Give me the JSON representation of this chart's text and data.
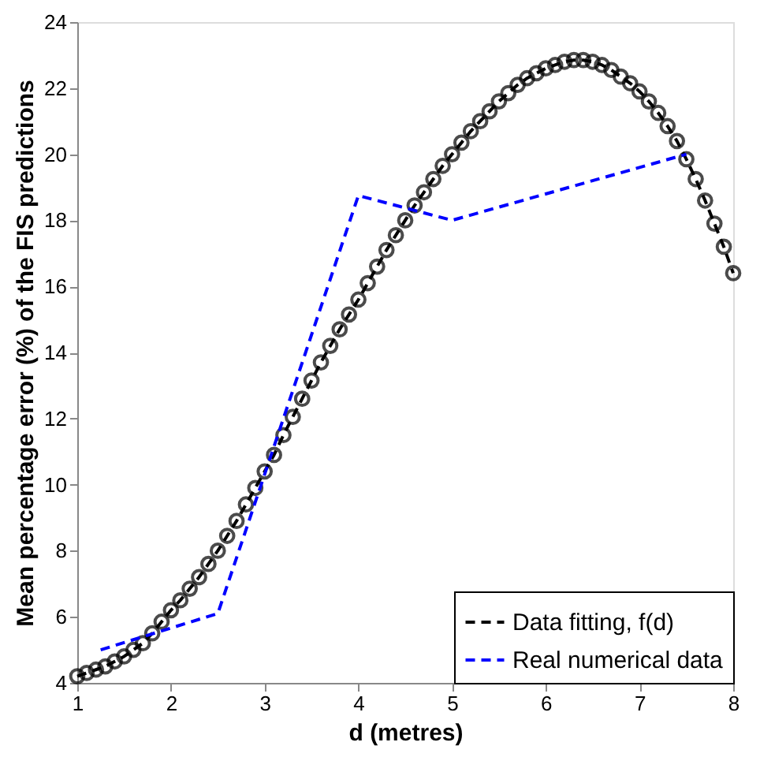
{
  "chart_data": {
    "type": "line",
    "xlabel": "d (metres)",
    "ylabel": "Mean percentage error (%) of the FIS predictions",
    "xlim": [
      1,
      8
    ],
    "xticks": [
      1,
      2,
      3,
      4,
      5,
      6,
      7,
      8
    ],
    "ylim": [
      4,
      24
    ],
    "yticks": [
      4,
      6,
      8,
      10,
      12,
      14,
      16,
      18,
      20,
      22,
      24
    ],
    "grid": false,
    "legend": "bottom right",
    "series": [
      {
        "name": "Data fitting, f(d)",
        "color": "#000000",
        "marker": "circle",
        "line_style": "dashed",
        "x": [
          1.0,
          1.1,
          1.2,
          1.3,
          1.4,
          1.5,
          1.6,
          1.7,
          1.8,
          1.9,
          2.0,
          2.1,
          2.2,
          2.3,
          2.4,
          2.5,
          2.6,
          2.7,
          2.8,
          2.9,
          3.0,
          3.1,
          3.2,
          3.3,
          3.4,
          3.5,
          3.6,
          3.7,
          3.8,
          3.9,
          4.0,
          4.1,
          4.2,
          4.3,
          4.4,
          4.5,
          4.6,
          4.7,
          4.8,
          4.9,
          5.0,
          5.1,
          5.2,
          5.3,
          5.4,
          5.5,
          5.6,
          5.7,
          5.8,
          5.9,
          6.0,
          6.1,
          6.2,
          6.3,
          6.4,
          6.5,
          6.6,
          6.7,
          6.8,
          6.9,
          7.0,
          7.1,
          7.2,
          7.3,
          7.4,
          7.5,
          7.6,
          7.7,
          7.8,
          7.9,
          8.0
        ],
        "values": [
          4.2,
          4.3,
          4.4,
          4.5,
          4.65,
          4.8,
          5.0,
          5.2,
          5.5,
          5.85,
          6.2,
          6.5,
          6.85,
          7.2,
          7.6,
          8.0,
          8.45,
          8.9,
          9.4,
          9.9,
          10.4,
          10.9,
          11.5,
          12.05,
          12.6,
          13.15,
          13.7,
          14.2,
          14.7,
          15.15,
          15.6,
          16.1,
          16.6,
          17.1,
          17.55,
          18.0,
          18.45,
          18.85,
          19.25,
          19.65,
          20.0,
          20.35,
          20.7,
          21.0,
          21.3,
          21.6,
          21.85,
          22.1,
          22.3,
          22.45,
          22.6,
          22.7,
          22.8,
          22.85,
          22.85,
          22.8,
          22.7,
          22.55,
          22.35,
          22.15,
          21.9,
          21.6,
          21.25,
          20.85,
          20.4,
          19.85,
          19.25,
          18.6,
          17.9,
          17.2,
          16.4
        ]
      },
      {
        "name": "Real numerical data",
        "color": "#0000ff",
        "marker": "none",
        "line_style": "dashed",
        "x": [
          1.25,
          2.5,
          4,
          5,
          7.5
        ],
        "values": [
          5,
          6.1,
          18.75,
          18,
          20
        ]
      }
    ]
  }
}
